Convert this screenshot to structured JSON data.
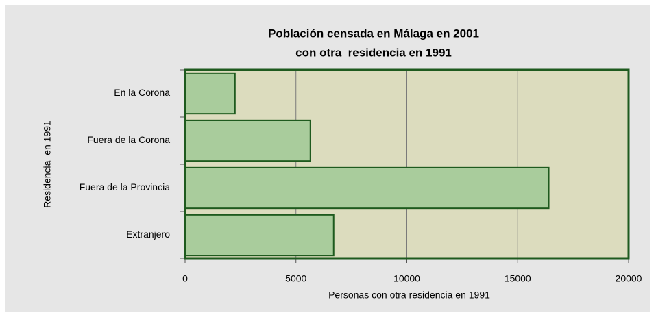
{
  "chart_data": {
    "type": "bar",
    "orientation": "horizontal",
    "title": [
      "Población censada en Málaga en 2001",
      "con otra  residencia en 1991"
    ],
    "xlabel": "Personas con otra residencia en 1991",
    "ylabel": "Residencia  en 1991",
    "categories": [
      "En la Corona",
      "Fuera de la Corona",
      "Fuera de la Provincia",
      "Extranjero"
    ],
    "values": [
      2250,
      5650,
      16400,
      6700
    ],
    "color": "#a9cc9c",
    "xlim": [
      0,
      20000
    ],
    "xticks": [
      0,
      5000,
      10000,
      15000,
      20000
    ],
    "grid": true
  }
}
